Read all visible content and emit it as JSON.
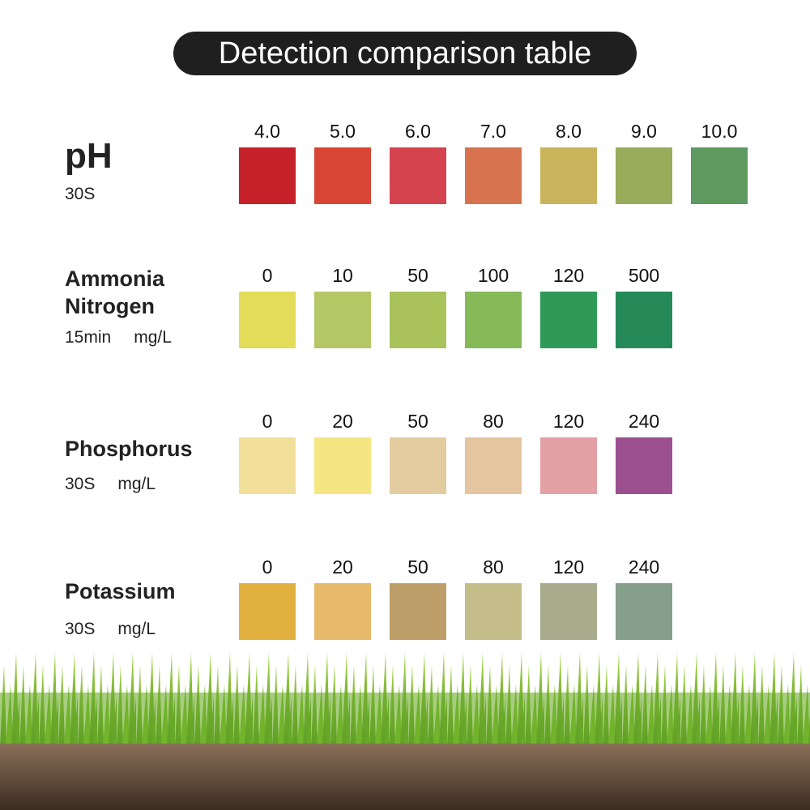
{
  "header": {
    "title": "Detection comparison table"
  },
  "rows": [
    {
      "name": "pH",
      "time": "30S",
      "levels": [
        {
          "label": "4.0",
          "color": "#c62128"
        },
        {
          "label": "5.0",
          "color": "#d94535"
        },
        {
          "label": "6.0",
          "color": "#d5434e"
        },
        {
          "label": "7.0",
          "color": "#d7734f"
        },
        {
          "label": "8.0",
          "color": "#c9b45c"
        },
        {
          "label": "9.0",
          "color": "#98ac5c"
        },
        {
          "label": "10.0",
          "color": "#5e9960"
        }
      ]
    },
    {
      "name": "Ammonia Nitrogen",
      "time": "15min",
      "unit": "mg/L",
      "levels": [
        {
          "label": "0",
          "color": "#e2dc58"
        },
        {
          "label": "10",
          "color": "#b6c766"
        },
        {
          "label": "50",
          "color": "#a9c35a"
        },
        {
          "label": "100",
          "color": "#86b958"
        },
        {
          "label": "120",
          "color": "#2f9a58"
        },
        {
          "label": "500",
          "color": "#258a58"
        }
      ]
    },
    {
      "name": "Phosphorus",
      "time": "30S",
      "unit": "mg/L",
      "levels": [
        {
          "label": "0",
          "color": "#f2e09a"
        },
        {
          "label": "20",
          "color": "#f5e684"
        },
        {
          "label": "50",
          "color": "#e3cca0"
        },
        {
          "label": "80",
          "color": "#e4c59f"
        },
        {
          "label": "120",
          "color": "#e3a0a4"
        },
        {
          "label": "240",
          "color": "#9c5090"
        }
      ]
    },
    {
      "name": "Potassium",
      "time": "30S",
      "unit": "mg/L",
      "levels": [
        {
          "label": "0",
          "color": "#e1b03e"
        },
        {
          "label": "20",
          "color": "#e7b96a"
        },
        {
          "label": "50",
          "color": "#bd9e68"
        },
        {
          "label": "80",
          "color": "#c4bd8a"
        },
        {
          "label": "120",
          "color": "#a8ac8c"
        },
        {
          "label": "240",
          "color": "#869f8a"
        }
      ]
    }
  ]
}
